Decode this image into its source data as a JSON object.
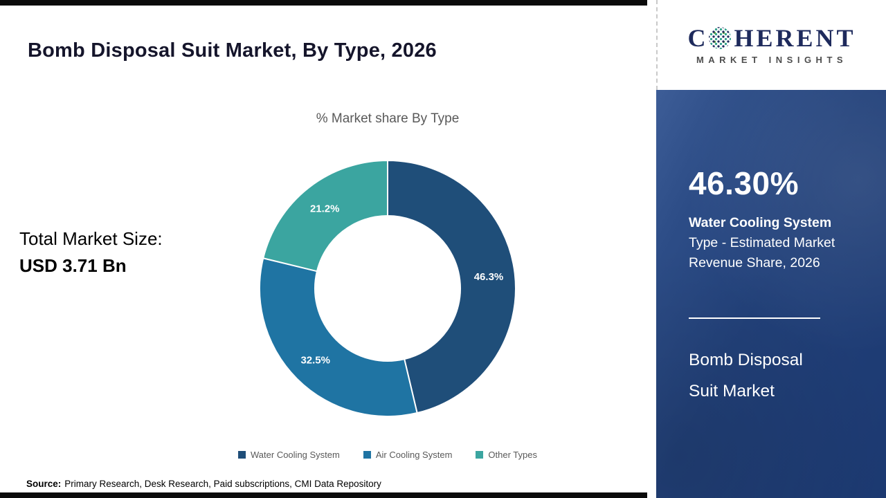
{
  "main": {
    "title": "Bomb Disposal Suit Market, By Type, 2026",
    "market_size_label": "Total Market Size:",
    "market_size_value": "USD 3.71 Bn",
    "source_label": "Source:",
    "source_text": "Primary Research, Desk Research, Paid subscriptions, CMI Data Repository"
  },
  "chart_data": {
    "type": "pie",
    "subtype": "donut",
    "title": "% Market share By Type",
    "categories": [
      "Water Cooling System",
      "Air Cooling System",
      "Other Types"
    ],
    "values": [
      46.3,
      32.5,
      21.2
    ],
    "labels": [
      "46.3%",
      "32.5%",
      "21.2%"
    ],
    "colors": [
      "#1F4E79",
      "#1F74A3",
      "#3BA5A0"
    ],
    "legend_position": "bottom",
    "start_angle_deg": -90,
    "direction": "clockwise"
  },
  "sidebar": {
    "stat_value": "46.30%",
    "stat_line1": "Water Cooling System",
    "stat_line2": "Type - Estimated Market",
    "stat_line3": "Revenue Share, 2026",
    "product_line1": "Bomb Disposal",
    "product_line2": "Suit Market"
  },
  "logo": {
    "brand_first": "C",
    "brand_rest": "HERENT",
    "tagline": "MARKET INSIGHTS"
  }
}
